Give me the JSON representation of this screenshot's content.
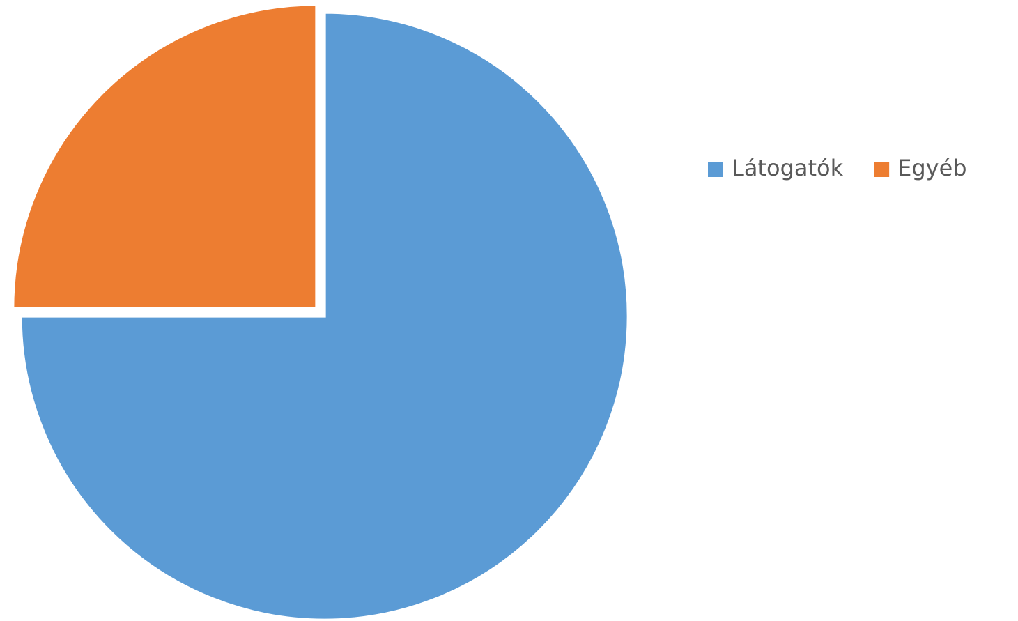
{
  "chart_data": {
    "type": "pie",
    "categories": [
      "Látogatók",
      "Egyéb"
    ],
    "values": [
      75,
      25
    ],
    "colors": [
      "#5b9bd5",
      "#ed7d31"
    ],
    "legend": "right"
  }
}
